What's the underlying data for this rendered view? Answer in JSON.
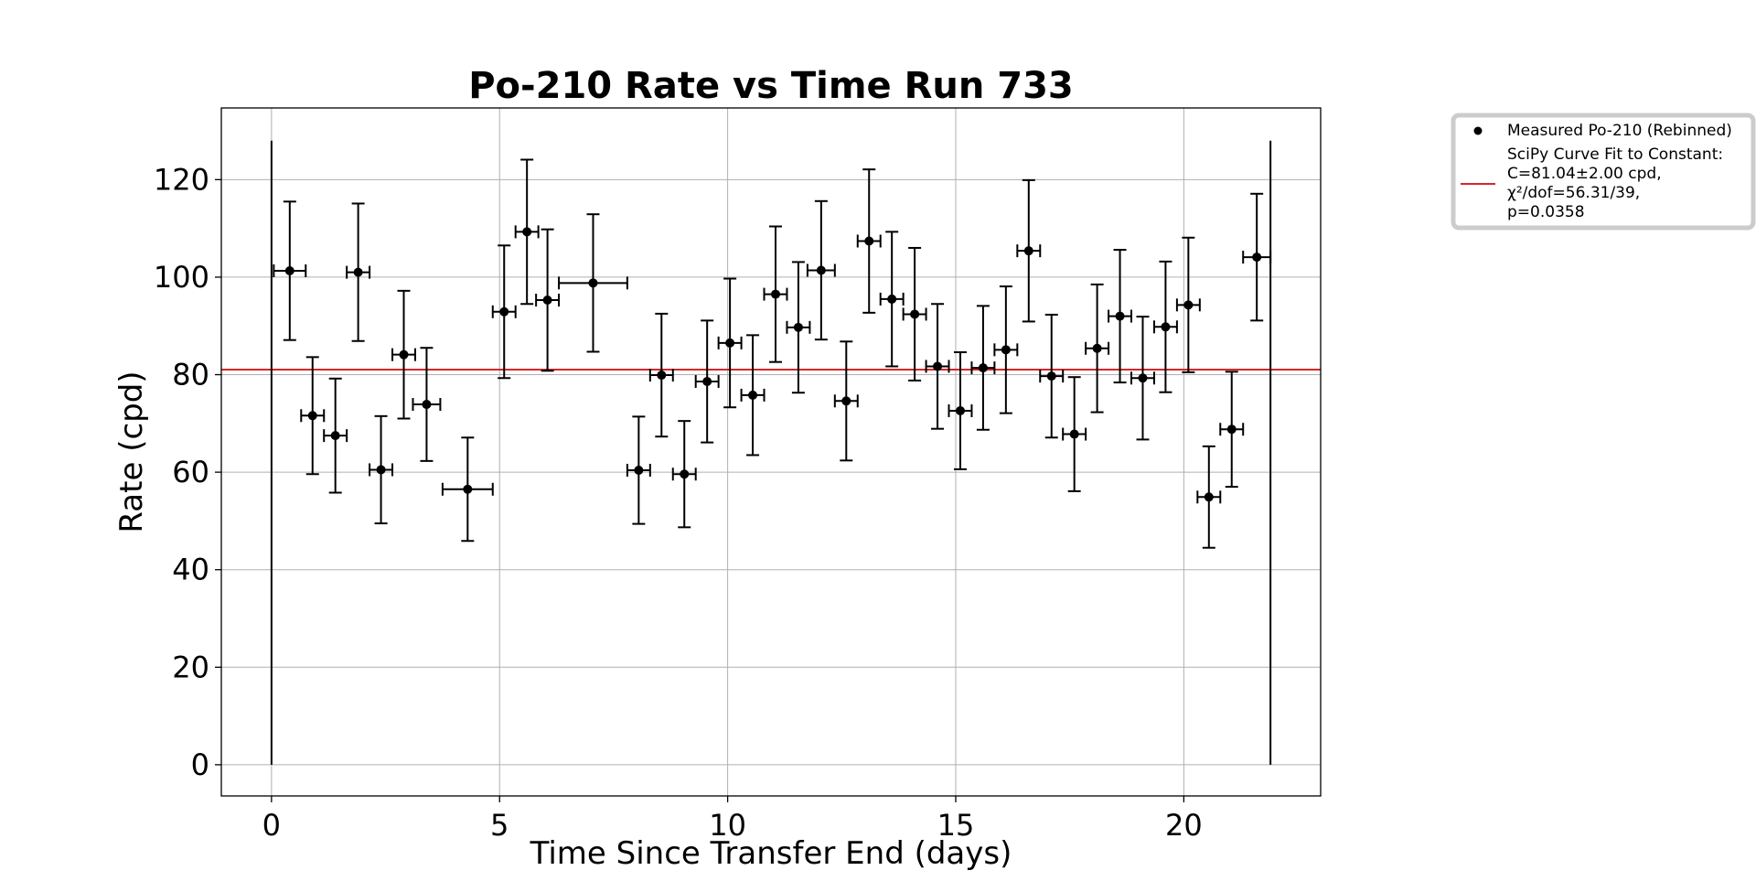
{
  "chart_data": {
    "type": "scatter",
    "title": "Po-210 Rate vs Time Run 733",
    "xlabel": "Time Since Transfer End (days)",
    "ylabel": "Rate (cpd)",
    "xlim": [
      -1.1,
      23.0
    ],
    "ylim": [
      -6.4,
      134.7
    ],
    "x_ticks": [
      0,
      5,
      10,
      15,
      20
    ],
    "y_ticks": [
      0,
      20,
      40,
      60,
      80,
      100,
      120
    ],
    "grid": true,
    "legend_position": "outside-top-right",
    "colors": {
      "points": "#000000",
      "fit": "#d62728",
      "grid": "#b0b0b0"
    },
    "series": [
      {
        "name": "Measured Po-210 (Rebinned)",
        "marker": "circle",
        "points": [
          {
            "x": 0.4,
            "y": 101.3,
            "xerr": 0.35,
            "yerr": 14.2
          },
          {
            "x": 0.9,
            "y": 71.6,
            "xerr": 0.25,
            "yerr": 12.0
          },
          {
            "x": 1.4,
            "y": 67.5,
            "xerr": 0.25,
            "yerr": 11.7
          },
          {
            "x": 1.9,
            "y": 101.0,
            "xerr": 0.25,
            "yerr": 14.1
          },
          {
            "x": 2.4,
            "y": 60.5,
            "xerr": 0.25,
            "yerr": 11.0
          },
          {
            "x": 2.9,
            "y": 84.1,
            "xerr": 0.25,
            "yerr": 13.1
          },
          {
            "x": 3.4,
            "y": 73.9,
            "xerr": 0.3,
            "yerr": 11.6
          },
          {
            "x": 4.3,
            "y": 56.5,
            "xerr": 0.55,
            "yerr": 10.6
          },
          {
            "x": 5.1,
            "y": 92.9,
            "xerr": 0.25,
            "yerr": 13.6
          },
          {
            "x": 5.6,
            "y": 109.3,
            "xerr": 0.25,
            "yerr": 14.8
          },
          {
            "x": 6.05,
            "y": 95.3,
            "xerr": 0.25,
            "yerr": 14.5
          },
          {
            "x": 7.05,
            "y": 98.8,
            "xerr": 0.75,
            "yerr": 14.1
          },
          {
            "x": 8.05,
            "y": 60.4,
            "xerr": 0.25,
            "yerr": 11.0
          },
          {
            "x": 8.55,
            "y": 79.9,
            "xerr": 0.25,
            "yerr": 12.6
          },
          {
            "x": 9.05,
            "y": 59.6,
            "xerr": 0.25,
            "yerr": 10.9
          },
          {
            "x": 9.55,
            "y": 78.6,
            "xerr": 0.25,
            "yerr": 12.5
          },
          {
            "x": 10.05,
            "y": 86.5,
            "xerr": 0.25,
            "yerr": 13.2
          },
          {
            "x": 10.55,
            "y": 75.8,
            "xerr": 0.25,
            "yerr": 12.3
          },
          {
            "x": 11.05,
            "y": 96.5,
            "xerr": 0.25,
            "yerr": 13.9
          },
          {
            "x": 11.55,
            "y": 89.7,
            "xerr": 0.25,
            "yerr": 13.4
          },
          {
            "x": 12.05,
            "y": 101.4,
            "xerr": 0.3,
            "yerr": 14.2
          },
          {
            "x": 12.6,
            "y": 74.6,
            "xerr": 0.25,
            "yerr": 12.2
          },
          {
            "x": 13.1,
            "y": 107.4,
            "xerr": 0.25,
            "yerr": 14.7
          },
          {
            "x": 13.6,
            "y": 95.5,
            "xerr": 0.25,
            "yerr": 13.8
          },
          {
            "x": 14.1,
            "y": 92.4,
            "xerr": 0.25,
            "yerr": 13.6
          },
          {
            "x": 14.6,
            "y": 81.7,
            "xerr": 0.25,
            "yerr": 12.8
          },
          {
            "x": 15.1,
            "y": 72.6,
            "xerr": 0.25,
            "yerr": 12.0
          },
          {
            "x": 15.6,
            "y": 81.4,
            "xerr": 0.25,
            "yerr": 12.7
          },
          {
            "x": 16.1,
            "y": 85.1,
            "xerr": 0.25,
            "yerr": 13.0
          },
          {
            "x": 16.6,
            "y": 105.4,
            "xerr": 0.25,
            "yerr": 14.5
          },
          {
            "x": 17.1,
            "y": 79.7,
            "xerr": 0.25,
            "yerr": 12.6
          },
          {
            "x": 17.6,
            "y": 67.8,
            "xerr": 0.25,
            "yerr": 11.7
          },
          {
            "x": 18.1,
            "y": 85.4,
            "xerr": 0.25,
            "yerr": 13.1
          },
          {
            "x": 18.6,
            "y": 92.0,
            "xerr": 0.25,
            "yerr": 13.6
          },
          {
            "x": 19.1,
            "y": 79.3,
            "xerr": 0.25,
            "yerr": 12.6
          },
          {
            "x": 19.6,
            "y": 89.8,
            "xerr": 0.25,
            "yerr": 13.4
          },
          {
            "x": 20.1,
            "y": 94.3,
            "xerr": 0.25,
            "yerr": 13.8
          },
          {
            "x": 20.55,
            "y": 54.9,
            "xerr": 0.25,
            "yerr": 10.4
          },
          {
            "x": 21.05,
            "y": 68.8,
            "xerr": 0.25,
            "yerr": 11.8
          },
          {
            "x": 21.6,
            "y": 104.1,
            "xerr": 0.3,
            "yerr": 13.0
          }
        ]
      },
      {
        "name": "SciPy Curve Fit to Constant: C=81.04±2.00 cpd, χ²/dof=56.31/39, p=0.0358",
        "type": "hline",
        "y": 81.04
      }
    ],
    "vertical_lines": [
      {
        "x": 0.0,
        "y_from": 0,
        "y_to": 128
      },
      {
        "x": 21.9,
        "y_from": 0,
        "y_to": 128
      }
    ],
    "legend": {
      "entries": [
        {
          "lines": [
            "Measured Po-210 (Rebinned)"
          ]
        },
        {
          "lines": [
            "SciPy Curve Fit to Constant:",
            "C=81.04±2.00 cpd,",
            "χ²/dof=56.31/39,",
            "p=0.0358"
          ]
        }
      ]
    }
  }
}
